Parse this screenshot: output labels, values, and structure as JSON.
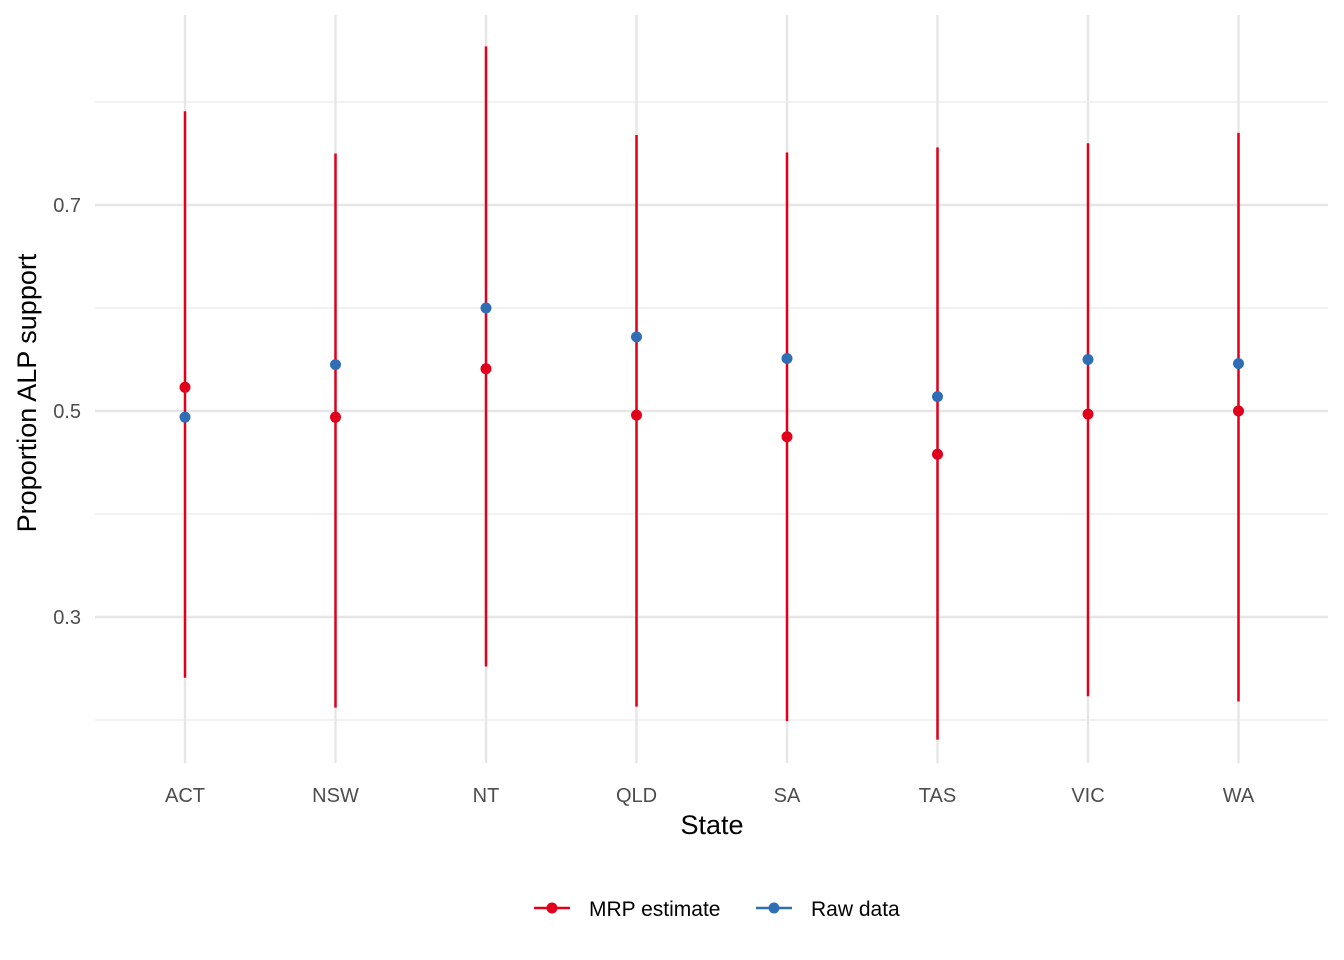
{
  "chart_data": {
    "type": "scatter",
    "subtype": "point-range",
    "xlabel": "State",
    "ylabel": "Proportion ALP support",
    "categories": [
      "ACT",
      "NSW",
      "NT",
      "QLD",
      "SA",
      "TAS",
      "VIC",
      "WA"
    ],
    "yticks": [
      0.3,
      0.5,
      0.7
    ],
    "ylim": [
      0.17,
      0.885
    ],
    "grid": true,
    "legend_position": "bottom",
    "series": [
      {
        "name": "MRP estimate",
        "color": "#e0001b",
        "values": [
          0.523,
          0.494,
          0.541,
          0.496,
          0.475,
          0.458,
          0.497,
          0.5
        ],
        "lower": [
          0.241,
          0.212,
          0.252,
          0.213,
          0.199,
          0.181,
          0.223,
          0.218
        ],
        "upper": [
          0.791,
          0.75,
          0.854,
          0.768,
          0.751,
          0.756,
          0.76,
          0.77
        ]
      },
      {
        "name": "Raw data",
        "color": "#2f6eb5",
        "values": [
          0.494,
          0.545,
          0.6,
          0.572,
          0.551,
          0.514,
          0.55,
          0.546
        ]
      }
    ]
  }
}
